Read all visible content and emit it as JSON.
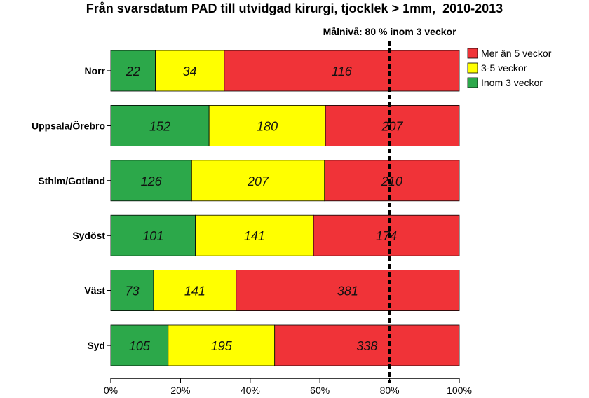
{
  "chart_data": {
    "type": "bar",
    "orientation": "horizontal",
    "stacked": "percent",
    "title": "Från svarsdatum PAD till utvidgad kirurgi, tjocklek > 1mm,  2010-2013",
    "categories": [
      "Norr",
      "Uppsala/Örebro",
      "Sthlm/Gotland",
      "Sydöst",
      "Väst",
      "Syd"
    ],
    "series": [
      {
        "name": "Inom 3 veckor",
        "color": "#2ca84a",
        "values": [
          22,
          152,
          126,
          101,
          73,
          105
        ]
      },
      {
        "name": "3-5 veckor",
        "color": "#ffff00",
        "values": [
          34,
          180,
          207,
          141,
          141,
          195
        ]
      },
      {
        "name": "Mer än 5 veckor",
        "color": "#f03338",
        "values": [
          116,
          207,
          210,
          174,
          381,
          338
        ]
      }
    ],
    "legend_order": [
      "Mer än 5 veckor",
      "3-5 veckor",
      "Inom 3 veckor"
    ],
    "legend_position": "top-right",
    "x_ticks": [
      "0%",
      "20%",
      "40%",
      "60%",
      "80%",
      "100%"
    ],
    "xlim": [
      0,
      100
    ],
    "target_line": {
      "value": 80,
      "label": "Målnivå: 80 % inom 3 veckor"
    },
    "grid": false
  }
}
